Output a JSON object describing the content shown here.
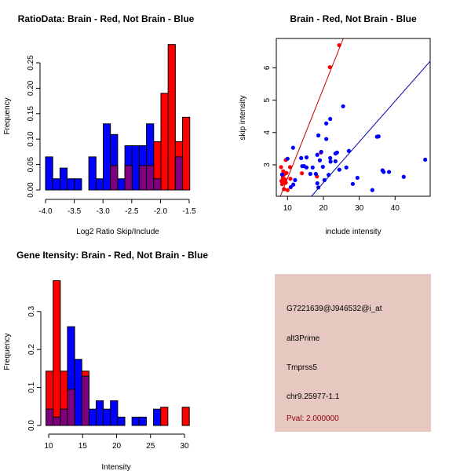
{
  "colors": {
    "brain": "#ff0000",
    "not_brain": "#0000ff",
    "overlap": "#7f007f",
    "panel_bg": "#e6c8c0",
    "pval": "#8b0000"
  },
  "chart_data": [
    {
      "type": "bar",
      "title": "RatioData: Brain - Red, Not Brain - Blue",
      "xlabel": "Log2 Ratio Skip/Include",
      "ylabel": "Frequency",
      "bin_start": -4.0,
      "bin_width": 0.1255,
      "xticks": [
        "-4.0",
        "-3.5",
        "-3.0",
        "-2.5",
        "-2.0",
        "-1.5"
      ],
      "xtick_values": [
        -4,
        -3.5,
        -3,
        -2.5,
        -2,
        -1.5
      ],
      "yticks": [
        "0.00",
        "0.05",
        "0.10",
        "0.15",
        "0.20",
        "0.25"
      ],
      "ytick_values": [
        0,
        0.05,
        0.1,
        0.15,
        0.2,
        0.25
      ],
      "series": [
        {
          "name": "Not Brain",
          "color": "blue",
          "values": [
            0.065,
            0.022,
            0.043,
            0.022,
            0.022,
            0,
            0.065,
            0.022,
            0.13,
            0.109,
            0.022,
            0.087,
            0.087,
            0.087,
            0.13,
            0.022,
            0,
            0,
            0.065,
            0
          ]
        },
        {
          "name": "Brain",
          "color": "red",
          "values": [
            0,
            0,
            0,
            0,
            0,
            0,
            0,
            0,
            0,
            0.048,
            0,
            0.048,
            0,
            0.048,
            0.048,
            0.095,
            0.19,
            0.286,
            0.095,
            0.143
          ]
        }
      ]
    },
    {
      "type": "scatter",
      "title": "Brain - Red, Not Brain - Blue",
      "xlabel": "include intensity",
      "ylabel": "skip intensity",
      "xticks": [
        "10",
        "20",
        "30",
        "40"
      ],
      "xtick_values": [
        10,
        20,
        30,
        40
      ],
      "yticks": [
        "3",
        "4",
        "5",
        "6"
      ],
      "ytick_values": [
        3,
        4,
        5,
        6
      ],
      "xlim": [
        7.5,
        49
      ],
      "ylim": [
        2.03,
        6.9
      ],
      "series": [
        {
          "name": "Brain",
          "color": "red",
          "points": [
            [
              8.2,
              2.93
            ],
            [
              8.5,
              2.4
            ],
            [
              8.7,
              2.6
            ],
            [
              8.8,
              2.8
            ],
            [
              9,
              2.25
            ],
            [
              9.2,
              2.45
            ],
            [
              9.3,
              2.55
            ],
            [
              9.5,
              3.15
            ],
            [
              9.7,
              2.75
            ],
            [
              10,
              2.22
            ],
            [
              10.7,
              2.93
            ],
            [
              10.8,
              2.57
            ],
            [
              14,
              2.74
            ],
            [
              18.2,
              2.64
            ],
            [
              19.3,
              3.38
            ],
            [
              21.8,
              6.02
            ],
            [
              24.4,
              6.7
            ],
            [
              9.0,
              2.7
            ],
            [
              9.5,
              2.45
            ],
            [
              8.3,
              2.5
            ]
          ],
          "fit": {
            "intercept": -0.195,
            "slope": 0.278
          }
        },
        {
          "name": "Not Brain",
          "color": "blue",
          "points": [
            [
              10,
              3.19
            ],
            [
              8.47,
              2.7
            ],
            [
              11.53,
              3.53
            ],
            [
              10.88,
              2.31
            ],
            [
              11.6,
              2.39
            ],
            [
              12.1,
              2.53
            ],
            [
              13.8,
              3.21
            ],
            [
              14.1,
              2.96
            ],
            [
              14.6,
              2.96
            ],
            [
              15.3,
              3.23
            ],
            [
              15.3,
              2.92
            ],
            [
              16.35,
              2.72
            ],
            [
              17,
              2.92
            ],
            [
              17.9,
              2.72
            ],
            [
              18.3,
              3.31
            ],
            [
              18.3,
              2.43
            ],
            [
              18.6,
              3.91
            ],
            [
              18.6,
              2.3
            ],
            [
              19,
              3.14
            ],
            [
              19.4,
              3.4
            ],
            [
              19.85,
              2.94
            ],
            [
              20.3,
              2.53
            ],
            [
              20.8,
              3.8
            ],
            [
              20.8,
              4.28
            ],
            [
              21.46,
              2.69
            ],
            [
              21.9,
              4.42
            ],
            [
              21.9,
              3.21
            ],
            [
              22,
              3.1
            ],
            [
              23.36,
              3.35
            ],
            [
              23.8,
              3.38
            ],
            [
              23.36,
              3.11
            ],
            [
              24.45,
              2.85
            ],
            [
              25.5,
              4.81
            ],
            [
              26.4,
              2.92
            ],
            [
              27.1,
              3.43
            ],
            [
              28.2,
              2.41
            ],
            [
              29.5,
              2.6
            ],
            [
              33.65,
              2.22
            ],
            [
              34.96,
              3.87
            ],
            [
              35.4,
              3.88
            ],
            [
              36.5,
              2.83
            ],
            [
              36.8,
              2.78
            ],
            [
              38.3,
              2.78
            ],
            [
              42.4,
              2.63
            ],
            [
              48.4,
              3.16
            ]
          ],
          "fit": {
            "intercept": -0.07,
            "slope": 0.126
          }
        }
      ]
    },
    {
      "type": "bar",
      "title": "Gene Itensity: Brain - Red, Not Brain - Blue",
      "xlabel": "Intensity",
      "ylabel": "Frequency",
      "bin_start": 9.6,
      "bin_width": 1.056,
      "xticks": [
        "10",
        "15",
        "20",
        "25",
        "30"
      ],
      "xtick_values": [
        10,
        15,
        20,
        25,
        30
      ],
      "yticks": [
        "0.0",
        "0.1",
        "0.2",
        "0.3"
      ],
      "ytick_values": [
        0,
        0.1,
        0.2,
        0.3
      ],
      "series": [
        {
          "name": "Not Brain",
          "color": "blue",
          "values": [
            0.043,
            0.022,
            0.043,
            0.26,
            0.174,
            0.13,
            0.043,
            0.065,
            0.043,
            0.065,
            0.022,
            0,
            0.022,
            0.022,
            0,
            0.043,
            0,
            0,
            0,
            0
          ]
        },
        {
          "name": "Brain",
          "color": "red",
          "values": [
            0.143,
            0.381,
            0.143,
            0.095,
            0,
            0.143,
            0,
            0,
            0,
            0,
            0,
            0,
            0,
            0,
            0,
            0,
            0.048,
            0,
            0,
            0.048
          ]
        }
      ]
    }
  ],
  "info": {
    "probe": "G7221639@J946532@i_at",
    "event": "alt3Prime",
    "gene": "Tmprss5",
    "location": "chr9.25977-1.1",
    "pval": "Pval: 2.000000"
  }
}
